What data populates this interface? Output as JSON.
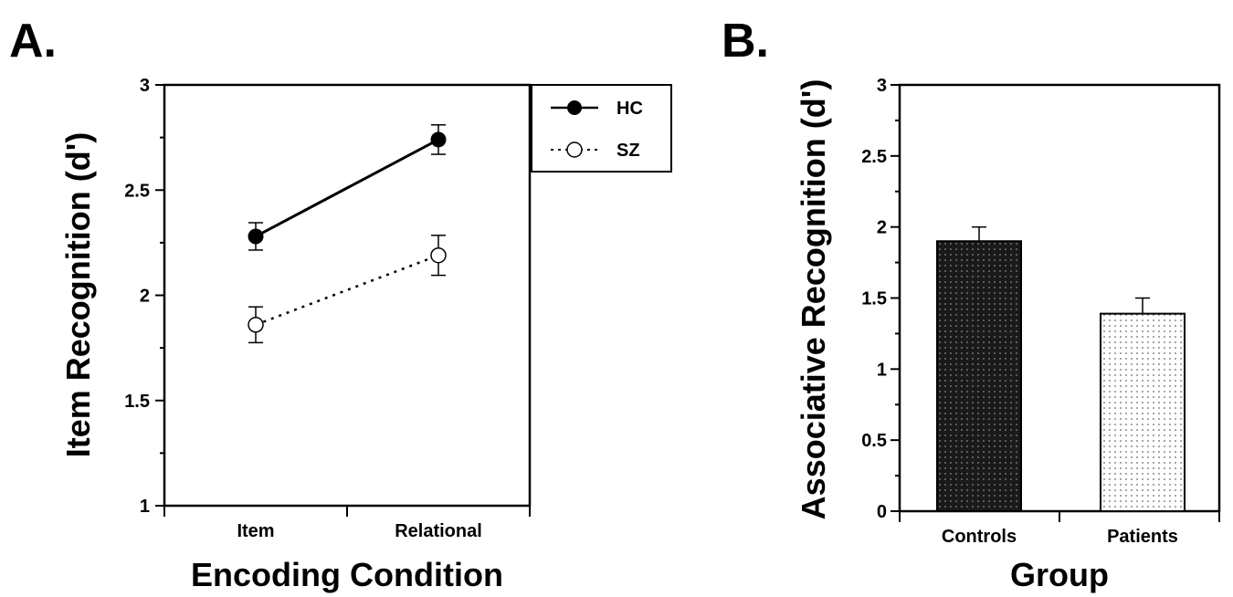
{
  "chart_data": [
    {
      "panel_label": "A.",
      "type": "line",
      "xlabel": "Encoding Condition",
      "ylabel": "Item Recognition (d')",
      "categories": [
        "Item",
        "Relational"
      ],
      "ylim": [
        1,
        3
      ],
      "yticks": [
        "1",
        "1.5",
        "2",
        "2.5",
        "3"
      ],
      "legend_position": "top-right, outside plot",
      "series": [
        {
          "name": "HC",
          "values": [
            2.28,
            2.74
          ],
          "errors": [
            0.065,
            0.07
          ],
          "marker": "filled-circle",
          "line": "solid",
          "color": "#000000"
        },
        {
          "name": "SZ",
          "values": [
            1.86,
            2.19
          ],
          "errors": [
            0.085,
            0.095
          ],
          "marker": "open-circle",
          "line": "dotted",
          "color": "#000000"
        }
      ]
    },
    {
      "panel_label": "B.",
      "type": "bar",
      "xlabel": "Group",
      "ylabel": "Associative Recognition (d')",
      "categories": [
        "Controls",
        "Patients"
      ],
      "values": [
        1.9,
        1.39
      ],
      "errors": [
        0.1,
        0.11
      ],
      "ylim": [
        0,
        3
      ],
      "yticks": [
        "0",
        "0.5",
        "1",
        "1.5",
        "2",
        "2.5",
        "3"
      ],
      "bar_fills": [
        "dark-stipple",
        "light-stipple"
      ]
    }
  ]
}
